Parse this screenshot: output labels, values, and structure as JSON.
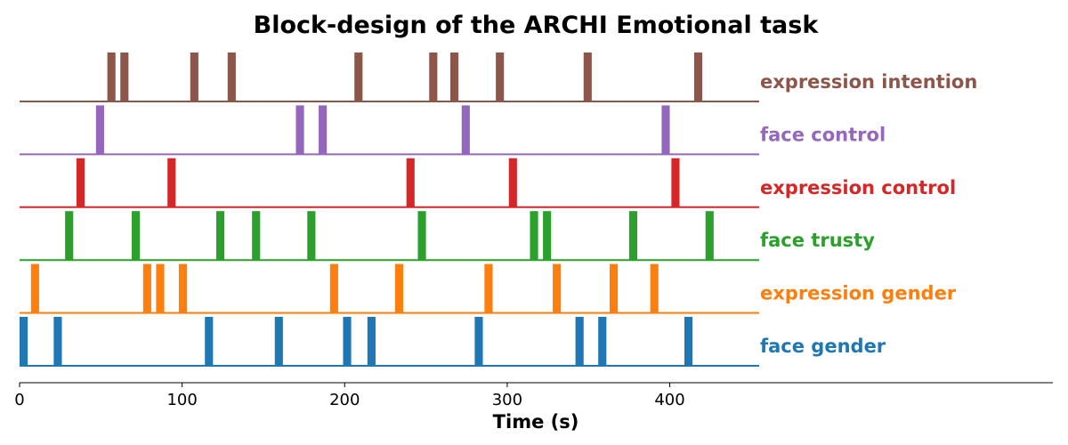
{
  "chart_data": {
    "type": "event-raster",
    "title": "Block-design of the ARCHI Emotional task",
    "xlabel": "Time (s)",
    "ylabel": "",
    "xlim": [
      0,
      455
    ],
    "xticks": [
      0,
      100,
      200,
      300,
      400
    ],
    "block_duration": 5,
    "grid": false,
    "series": [
      {
        "name": "face gender",
        "color": "#1f77b4",
        "onsets": [
          0,
          21,
          114,
          157,
          199,
          214,
          280,
          342,
          356,
          409
        ]
      },
      {
        "name": "expression gender",
        "color": "#ff7f0e",
        "onsets": [
          7,
          76,
          84,
          98,
          191,
          231,
          286,
          328,
          363,
          388
        ]
      },
      {
        "name": "face trusty",
        "color": "#2ca02c",
        "onsets": [
          28,
          69,
          121,
          143,
          177,
          245,
          314,
          322,
          375,
          422
        ]
      },
      {
        "name": "expression control",
        "color": "#d62728",
        "onsets": [
          35,
          91,
          238,
          301,
          401
        ]
      },
      {
        "name": "face control",
        "color": "#9467bd",
        "onsets": [
          47,
          170,
          184,
          272,
          395
        ]
      },
      {
        "name": "expression intention",
        "color": "#8c564b",
        "onsets": [
          54,
          62,
          105,
          128,
          206,
          252,
          265,
          293,
          347,
          415
        ]
      }
    ]
  }
}
